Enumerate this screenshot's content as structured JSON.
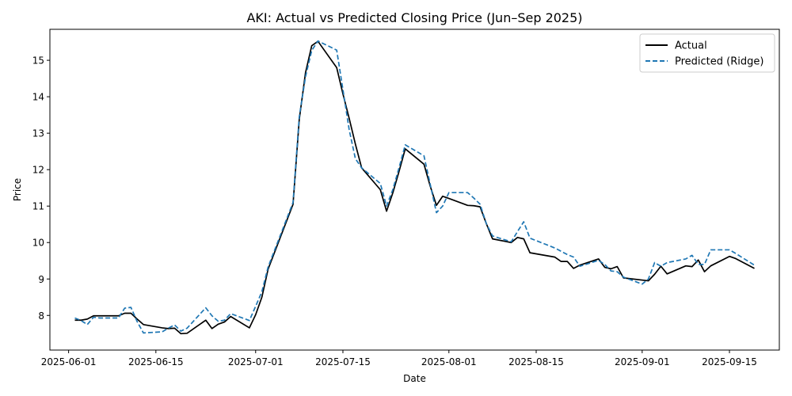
{
  "chart_data": {
    "type": "line",
    "title": "AKI: Actual vs Predicted Closing Price (Jun–Sep 2025)",
    "xlabel": "Date",
    "ylabel": "Price",
    "x_ticks": [
      "2025-06-01",
      "2025-06-15",
      "2025-07-01",
      "2025-07-15",
      "2025-08-01",
      "2025-08-15",
      "2025-09-01",
      "2025-09-15"
    ],
    "y_ticks": [
      8,
      9,
      10,
      11,
      12,
      13,
      14,
      15
    ],
    "xlim": [
      "2025-05-29",
      "2025-09-23"
    ],
    "ylim": [
      7.05,
      15.85
    ],
    "grid": false,
    "legend_position": "top-right",
    "series": [
      {
        "name": "Actual",
        "color": "#000000",
        "style": "solid",
        "points": [
          [
            "2025-06-02",
            7.87
          ],
          [
            "2025-06-03",
            7.87
          ],
          [
            "2025-06-04",
            7.9
          ],
          [
            "2025-06-05",
            7.99
          ],
          [
            "2025-06-09",
            7.99
          ],
          [
            "2025-06-10",
            8.06
          ],
          [
            "2025-06-11",
            8.06
          ],
          [
            "2025-06-12",
            7.9
          ],
          [
            "2025-06-13",
            7.75
          ],
          [
            "2025-06-16",
            7.66
          ],
          [
            "2025-06-17",
            7.64
          ],
          [
            "2025-06-18",
            7.65
          ],
          [
            "2025-06-19",
            7.5
          ],
          [
            "2025-06-20",
            7.51
          ],
          [
            "2025-06-23",
            7.87
          ],
          [
            "2025-06-24",
            7.64
          ],
          [
            "2025-06-25",
            7.76
          ],
          [
            "2025-06-26",
            7.82
          ],
          [
            "2025-06-27",
            7.97
          ],
          [
            "2025-06-30",
            7.66
          ],
          [
            "2025-07-01",
            8.02
          ],
          [
            "2025-07-02",
            8.5
          ],
          [
            "2025-07-03",
            9.27
          ],
          [
            "2025-07-07",
            11.05
          ],
          [
            "2025-07-08",
            13.38
          ],
          [
            "2025-07-09",
            14.66
          ],
          [
            "2025-07-10",
            15.4
          ],
          [
            "2025-07-11",
            15.52
          ],
          [
            "2025-07-14",
            14.8
          ],
          [
            "2025-07-15",
            14.08
          ],
          [
            "2025-07-16",
            13.41
          ],
          [
            "2025-07-17",
            12.7
          ],
          [
            "2025-07-18",
            12.05
          ],
          [
            "2025-07-21",
            11.45
          ],
          [
            "2025-07-22",
            10.86
          ],
          [
            "2025-07-23",
            11.36
          ],
          [
            "2025-07-24",
            11.95
          ],
          [
            "2025-07-25",
            12.57
          ],
          [
            "2025-07-28",
            12.15
          ],
          [
            "2025-07-29",
            11.55
          ],
          [
            "2025-07-30",
            11.02
          ],
          [
            "2025-07-31",
            11.27
          ],
          [
            "2025-08-01",
            11.21
          ],
          [
            "2025-08-04",
            11.02
          ],
          [
            "2025-08-05",
            11.01
          ],
          [
            "2025-08-06",
            10.98
          ],
          [
            "2025-08-07",
            10.52
          ],
          [
            "2025-08-08",
            10.1
          ],
          [
            "2025-08-11",
            10.0
          ],
          [
            "2025-08-12",
            10.14
          ],
          [
            "2025-08-13",
            10.1
          ],
          [
            "2025-08-14",
            9.72
          ],
          [
            "2025-08-18",
            9.6
          ],
          [
            "2025-08-19",
            9.48
          ],
          [
            "2025-08-20",
            9.48
          ],
          [
            "2025-08-21",
            9.29
          ],
          [
            "2025-08-22",
            9.38
          ],
          [
            "2025-08-25",
            9.55
          ],
          [
            "2025-08-26",
            9.32
          ],
          [
            "2025-08-27",
            9.28
          ],
          [
            "2025-08-28",
            9.34
          ],
          [
            "2025-08-29",
            9.03
          ],
          [
            "2025-09-02",
            8.95
          ],
          [
            "2025-09-03",
            9.13
          ],
          [
            "2025-09-04",
            9.35
          ],
          [
            "2025-09-05",
            9.14
          ],
          [
            "2025-09-08",
            9.36
          ],
          [
            "2025-09-09",
            9.34
          ],
          [
            "2025-09-10",
            9.52
          ],
          [
            "2025-09-11",
            9.2
          ],
          [
            "2025-09-12",
            9.36
          ],
          [
            "2025-09-15",
            9.62
          ],
          [
            "2025-09-16",
            9.56
          ],
          [
            "2025-09-19",
            9.29
          ]
        ]
      },
      {
        "name": "Predicted (Ridge)",
        "color": "#1f77b4",
        "style": "dashed",
        "points": [
          [
            "2025-06-02",
            7.93
          ],
          [
            "2025-06-03",
            7.86
          ],
          [
            "2025-06-04",
            7.75
          ],
          [
            "2025-06-05",
            7.95
          ],
          [
            "2025-06-06",
            7.93
          ],
          [
            "2025-06-09",
            7.93
          ],
          [
            "2025-06-10",
            8.2
          ],
          [
            "2025-06-11",
            8.22
          ],
          [
            "2025-06-12",
            7.83
          ],
          [
            "2025-06-13",
            7.52
          ],
          [
            "2025-06-16",
            7.55
          ],
          [
            "2025-06-17",
            7.65
          ],
          [
            "2025-06-18",
            7.74
          ],
          [
            "2025-06-19",
            7.57
          ],
          [
            "2025-06-20",
            7.65
          ],
          [
            "2025-06-23",
            8.21
          ],
          [
            "2025-06-24",
            7.99
          ],
          [
            "2025-06-25",
            7.84
          ],
          [
            "2025-06-26",
            7.87
          ],
          [
            "2025-06-27",
            8.05
          ],
          [
            "2025-06-30",
            7.86
          ],
          [
            "2025-07-01",
            8.25
          ],
          [
            "2025-07-02",
            8.65
          ],
          [
            "2025-07-03",
            9.33
          ],
          [
            "2025-07-07",
            11.1
          ],
          [
            "2025-07-08",
            13.45
          ],
          [
            "2025-07-09",
            14.55
          ],
          [
            "2025-07-10",
            15.27
          ],
          [
            "2025-07-11",
            15.53
          ],
          [
            "2025-07-14",
            15.28
          ],
          [
            "2025-07-15",
            14.2
          ],
          [
            "2025-07-16",
            13.1
          ],
          [
            "2025-07-17",
            12.3
          ],
          [
            "2025-07-18",
            12.05
          ],
          [
            "2025-07-21",
            11.62
          ],
          [
            "2025-07-22",
            11.0
          ],
          [
            "2025-07-23",
            11.45
          ],
          [
            "2025-07-24",
            12.05
          ],
          [
            "2025-07-25",
            12.68
          ],
          [
            "2025-07-28",
            12.38
          ],
          [
            "2025-07-29",
            11.6
          ],
          [
            "2025-07-30",
            10.82
          ],
          [
            "2025-07-31",
            11.0
          ],
          [
            "2025-08-01",
            11.37
          ],
          [
            "2025-08-04",
            11.37
          ],
          [
            "2025-08-05",
            11.22
          ],
          [
            "2025-08-06",
            11.05
          ],
          [
            "2025-08-07",
            10.52
          ],
          [
            "2025-08-08",
            10.18
          ],
          [
            "2025-08-11",
            10.02
          ],
          [
            "2025-08-12",
            10.3
          ],
          [
            "2025-08-13",
            10.57
          ],
          [
            "2025-08-14",
            10.12
          ],
          [
            "2025-08-18",
            9.85
          ],
          [
            "2025-08-19",
            9.76
          ],
          [
            "2025-08-20",
            9.67
          ],
          [
            "2025-08-21",
            9.6
          ],
          [
            "2025-08-22",
            9.35
          ],
          [
            "2025-08-25",
            9.51
          ],
          [
            "2025-08-26",
            9.4
          ],
          [
            "2025-08-27",
            9.22
          ],
          [
            "2025-08-28",
            9.2
          ],
          [
            "2025-08-29",
            9.05
          ],
          [
            "2025-09-01",
            8.86
          ],
          [
            "2025-09-02",
            9.0
          ],
          [
            "2025-09-03",
            9.45
          ],
          [
            "2025-09-04",
            9.35
          ],
          [
            "2025-09-05",
            9.45
          ],
          [
            "2025-09-08",
            9.55
          ],
          [
            "2025-09-09",
            9.65
          ],
          [
            "2025-09-10",
            9.4
          ],
          [
            "2025-09-11",
            9.4
          ],
          [
            "2025-09-12",
            9.8
          ],
          [
            "2025-09-15",
            9.8
          ],
          [
            "2025-09-16",
            9.7
          ],
          [
            "2025-09-19",
            9.38
          ]
        ]
      }
    ]
  }
}
